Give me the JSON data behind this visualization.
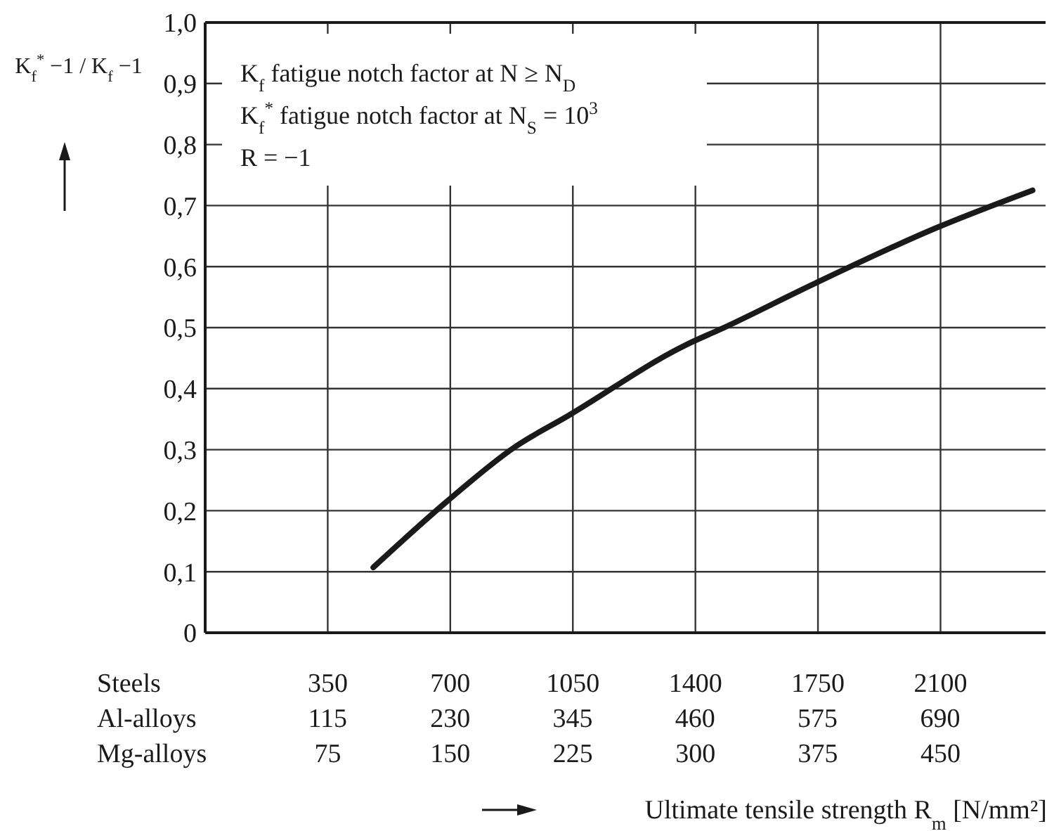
{
  "chart_data": {
    "type": "line",
    "xlabel": "Ultimate tensile strength R$_{m}$ [N/mm²]",
    "ylabel": "K$_{f}$$^{*}$ −1 / K$_{f}$ −1",
    "x": [
      480,
      690,
      886,
      1038,
      1374,
      1478,
      1736,
      2086,
      2363
    ],
    "series": [
      {
        "color": "#1a1a1a",
        "values": [
          0.107,
          0.215,
          0.305,
          0.356,
          0.472,
          0.499,
          0.571,
          0.663,
          0.725
        ]
      }
    ],
    "xlim": [
      0,
      2400
    ],
    "xticks": [
      350,
      700,
      1050,
      1400,
      1750,
      2100
    ],
    "x2lim": [
      0,
      789
    ],
    "x2ticks": [
      115,
      230,
      345,
      460,
      575,
      690
    ],
    "ylim": [
      0,
      1
    ],
    "yticks": [
      0,
      {
        "value": 0.1,
        "label": "0,1"
      },
      {
        "value": 0.2,
        "label": "0,2"
      },
      {
        "value": 0.3,
        "label": "0,3"
      },
      {
        "value": 0.4,
        "label": "0,4"
      },
      {
        "value": 0.5,
        "label": "0,5"
      },
      {
        "value": 0.6,
        "label": "0,6"
      },
      {
        "value": 0.7,
        "label": "0,7"
      },
      {
        "value": 0.8,
        "label": "0,8"
      },
      {
        "value": 0.9,
        "label": "0,9"
      },
      {
        "value": 1,
        "label": "1,0"
      }
    ],
    "grid": true,
    "line_style": "solid",
    "marker": "none",
    "annotations": [
      "K$_{f}$ fatigue notch factor at N ≥ N$_{D}$",
      "K$_{f}$$^{*}$ fatigue notch factor at N$_{S}$ = 10$^{3}$",
      "R = −1",
      "Steels",
      "Al-alloys",
      "Mg-alloys",
      "75",
      "150",
      "225",
      "300",
      "375",
      "450"
    ]
  }
}
